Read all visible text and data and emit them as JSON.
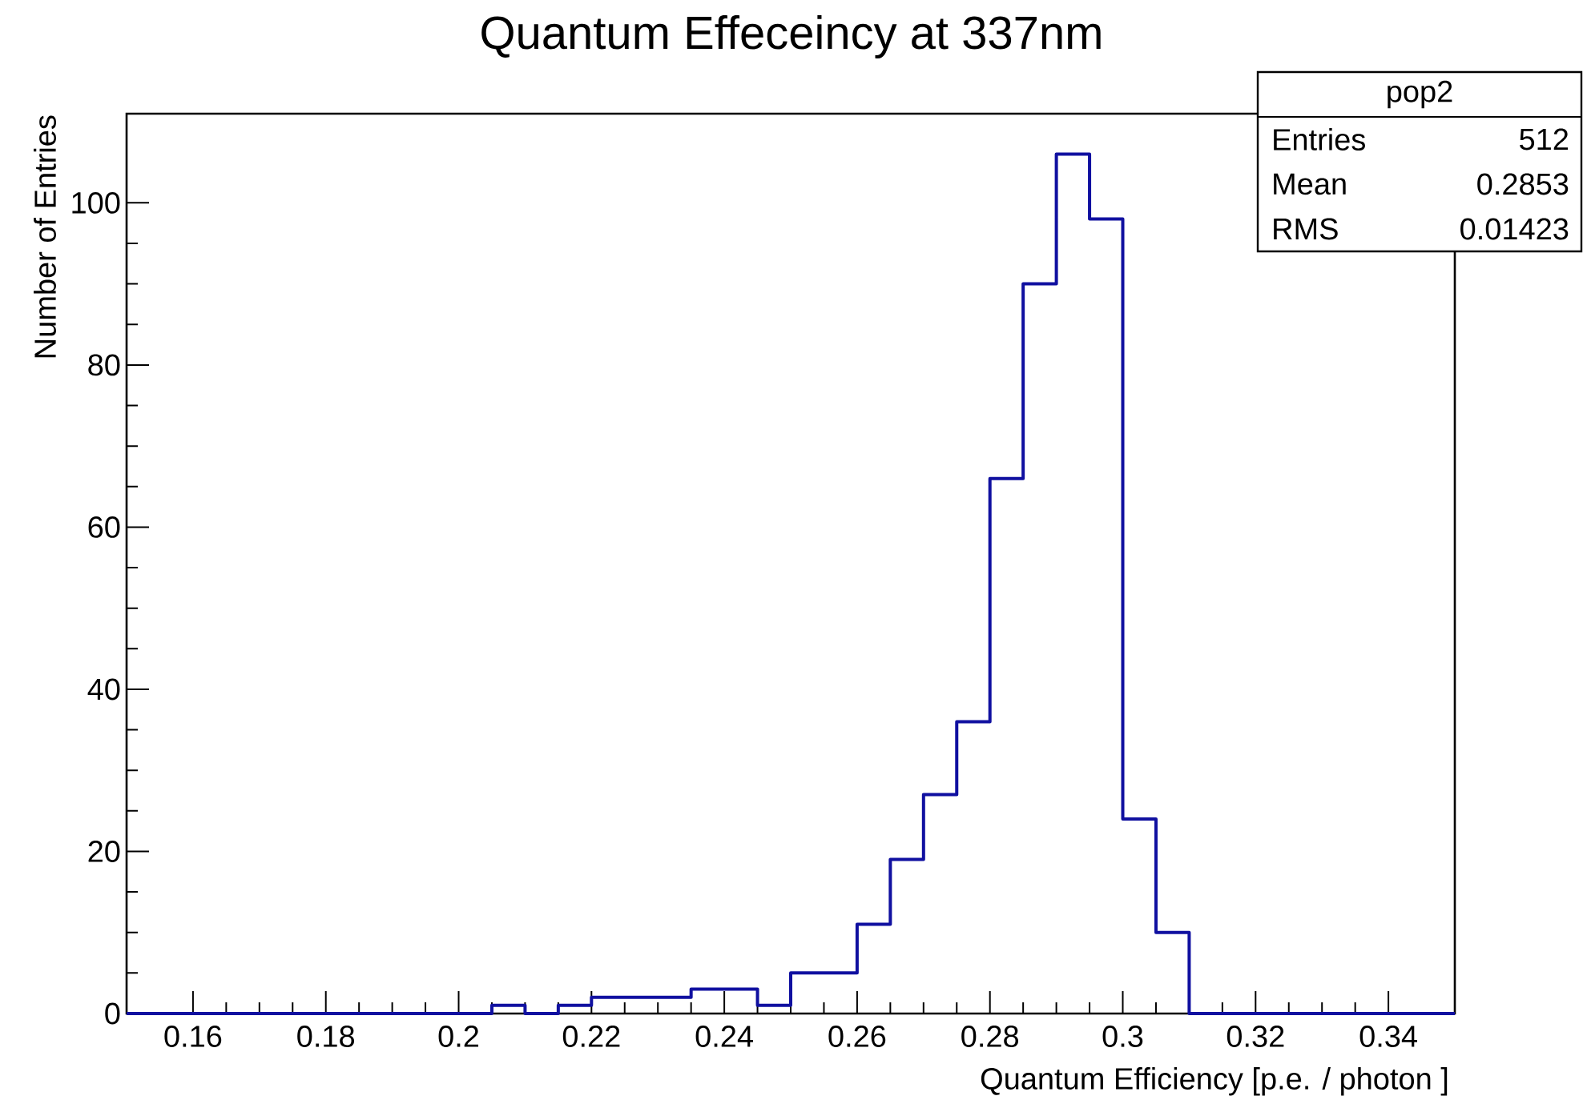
{
  "chart_data": {
    "type": "histogram",
    "title": "Quantum Effeceincy at 337nm",
    "xlabel": "Quantum Efficiency [p.e. / photon ]",
    "ylabel": "Number of Entries",
    "bins": [
      0.15,
      0.155,
      0.16,
      0.165,
      0.17,
      0.175,
      0.18,
      0.185,
      0.19,
      0.195,
      0.2,
      0.205,
      0.21,
      0.215,
      0.22,
      0.225,
      0.23,
      0.235,
      0.24,
      0.245,
      0.25,
      0.255,
      0.26,
      0.265,
      0.27,
      0.275,
      0.28,
      0.285,
      0.29,
      0.295,
      0.3,
      0.305,
      0.31,
      0.315,
      0.32,
      0.325,
      0.33,
      0.335,
      0.34,
      0.345,
      0.35
    ],
    "values": [
      0,
      0,
      0,
      0,
      0,
      0,
      0,
      0,
      0,
      0,
      0,
      1,
      0,
      1,
      2,
      2,
      2,
      3,
      3,
      1,
      5,
      5,
      11,
      19,
      27,
      36,
      66,
      90,
      106,
      98,
      24,
      10,
      0,
      0,
      0,
      0,
      0,
      0,
      0,
      0
    ],
    "color": "#1010a0",
    "xlim": [
      0.15,
      0.35
    ],
    "xticks": [
      0.16,
      0.18,
      0.2,
      0.22,
      0.24,
      0.26,
      0.28,
      0.3,
      0.32,
      0.34
    ],
    "ylim": [
      0,
      111
    ],
    "yticks": [
      0,
      20,
      40,
      60,
      80,
      100
    ],
    "annotations": [
      "pop2",
      "Entries",
      "512",
      "Mean",
      "0.2853",
      "RMS",
      "0.01423"
    ]
  }
}
